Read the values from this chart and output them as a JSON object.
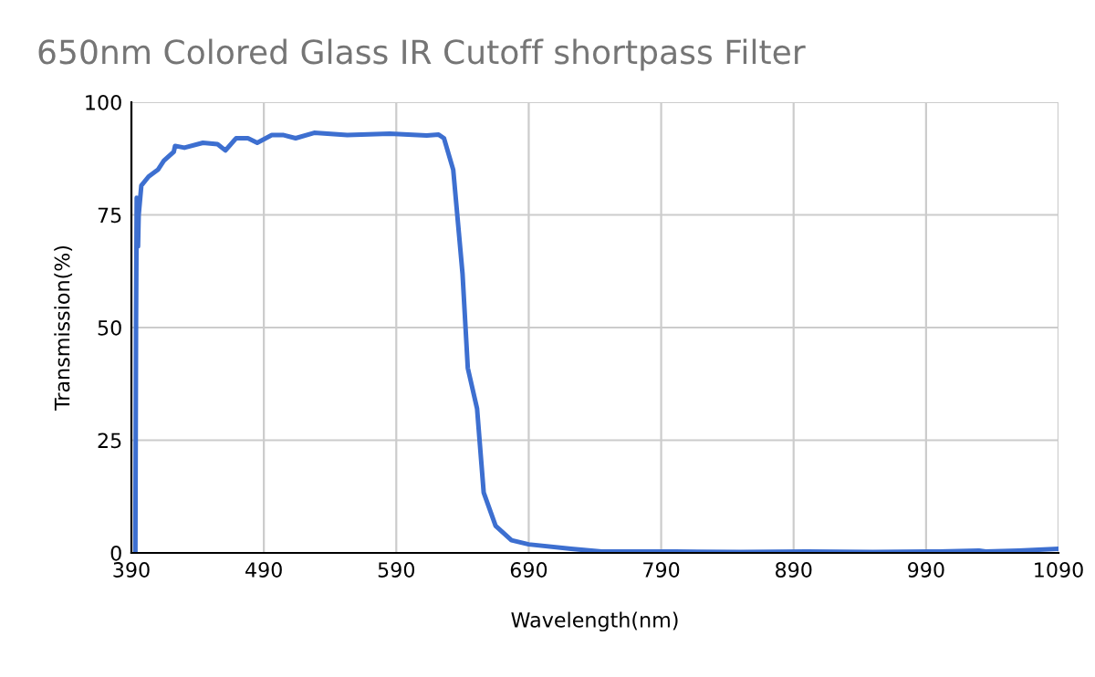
{
  "chart_data": {
    "type": "line",
    "title": "650nm Colored Glass IR Cutoff shortpass Filter",
    "xlabel": "Wavelength(nm)",
    "ylabel": "Transmission(%)",
    "xlim": [
      390,
      1090
    ],
    "xticks": [
      390,
      490,
      590,
      690,
      790,
      890,
      990,
      1090
    ],
    "ylim": [
      0,
      100
    ],
    "yticks": [
      0,
      25,
      50,
      75,
      100
    ],
    "grid": true,
    "legend": false,
    "series": [
      {
        "color": "#3d6fd0",
        "x": [
          393,
          393.5,
          394,
          395,
          395.5,
          397.5,
          403,
          410,
          414.5,
          422,
          423,
          430,
          444,
          455,
          461,
          469,
          478,
          485,
          496,
          505,
          514,
          528,
          553,
          585,
          613,
          622,
          626,
          633,
          640,
          644,
          651,
          656,
          665,
          677,
          690,
          722,
          745,
          800,
          850,
          900,
          950,
          1000,
          1030,
          1035,
          1060,
          1090
        ],
        "values": [
          0,
          51,
          78.8,
          68,
          75,
          81.5,
          83.5,
          85,
          87,
          89,
          90.3,
          89.9,
          91,
          90.7,
          89.3,
          92,
          92,
          91,
          92.7,
          92.7,
          92,
          93.2,
          92.7,
          93,
          92.6,
          92.8,
          92,
          85,
          62,
          41,
          32,
          13.4,
          6,
          2.8,
          1.9,
          0.9,
          0.3,
          0.3,
          0.2,
          0.3,
          0.2,
          0.3,
          0.5,
          0.3,
          0.5,
          0.9
        ]
      }
    ]
  }
}
